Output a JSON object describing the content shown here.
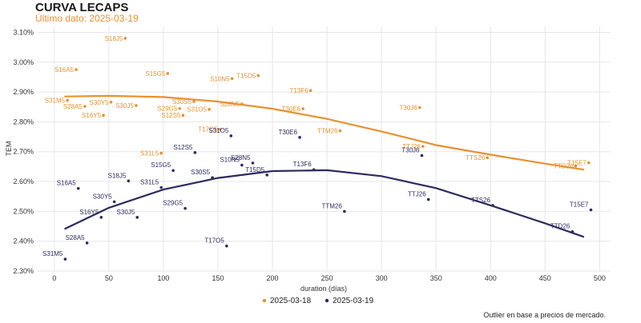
{
  "header": {
    "title": "CURVA LECAPS",
    "subtitle": "Último dato: 2025-03-19"
  },
  "footnote": "Outlier en base a precios de mercado.",
  "colors": {
    "series_a": "#e8912f",
    "series_b": "#2e2a5e",
    "grid": "#e6e6e6"
  },
  "chart_data": {
    "type": "scatter",
    "xlabel": "duration (días)",
    "ylabel": "TEM",
    "xlim": [
      -16,
      510
    ],
    "ylim": [
      2.3,
      3.12
    ],
    "xticks": [
      0,
      50,
      100,
      150,
      200,
      250,
      300,
      350,
      400,
      450,
      500
    ],
    "yticks": [
      2.3,
      2.4,
      2.5,
      2.6,
      2.7,
      2.8,
      2.9,
      3.0,
      3.1
    ],
    "ytick_labels": [
      "2.30%",
      "2.40%",
      "2.50%",
      "2.60%",
      "2.70%",
      "2.80%",
      "2.90%",
      "3.00%",
      "3.10%"
    ],
    "grid": true,
    "legend_position": "bottom",
    "series": [
      {
        "name": "2025-03-18",
        "color": "#e8912f",
        "curve": [
          [
            10,
            2.885
          ],
          [
            50,
            2.887
          ],
          [
            100,
            2.883
          ],
          [
            150,
            2.868
          ],
          [
            200,
            2.844
          ],
          [
            250,
            2.81
          ],
          [
            300,
            2.768
          ],
          [
            350,
            2.722
          ],
          [
            400,
            2.69
          ],
          [
            450,
            2.66
          ],
          [
            485,
            2.64
          ]
        ],
        "points": [
          {
            "label": "S31M5",
            "x": 12,
            "y": 2.872
          },
          {
            "label": "S16A5",
            "x": 20,
            "y": 2.975
          },
          {
            "label": "S28A5",
            "x": 28,
            "y": 2.852
          },
          {
            "label": "S16Y5",
            "x": 45,
            "y": 2.822
          },
          {
            "label": "S30Y5",
            "x": 52,
            "y": 2.866
          },
          {
            "label": "S18J5",
            "x": 65,
            "y": 3.08
          },
          {
            "label": "S30J5",
            "x": 75,
            "y": 2.855
          },
          {
            "label": "S31L5",
            "x": 98,
            "y": 2.695
          },
          {
            "label": "S15G5",
            "x": 104,
            "y": 2.962
          },
          {
            "label": "S29G5",
            "x": 115,
            "y": 2.845
          },
          {
            "label": "S12S5",
            "x": 118,
            "y": 2.822
          },
          {
            "label": "S30S5",
            "x": 128,
            "y": 2.868
          },
          {
            "label": "S31O5",
            "x": 142,
            "y": 2.842
          },
          {
            "label": "T17O5",
            "x": 152,
            "y": 2.775
          },
          {
            "label": "S10N5",
            "x": 163,
            "y": 2.945
          },
          {
            "label": "S28N5",
            "x": 172,
            "y": 2.86
          },
          {
            "label": "T15D5",
            "x": 187,
            "y": 2.955
          },
          {
            "label": "T30E6",
            "x": 228,
            "y": 2.844
          },
          {
            "label": "T13F6",
            "x": 235,
            "y": 2.905
          },
          {
            "label": "TTM26",
            "x": 262,
            "y": 2.77
          },
          {
            "label": "T30J6",
            "x": 335,
            "y": 2.848
          },
          {
            "label": "TTJ26",
            "x": 338,
            "y": 2.718
          },
          {
            "label": "TTS26",
            "x": 397,
            "y": 2.68
          },
          {
            "label": "TTD26",
            "x": 478,
            "y": 2.652
          },
          {
            "label": "T15E7",
            "x": 490,
            "y": 2.663
          }
        ]
      },
      {
        "name": "2025-03-19",
        "color": "#2e2a5e",
        "curve": [
          [
            10,
            2.442
          ],
          [
            50,
            2.512
          ],
          [
            100,
            2.573
          ],
          [
            150,
            2.612
          ],
          [
            200,
            2.635
          ],
          [
            250,
            2.638
          ],
          [
            300,
            2.618
          ],
          [
            350,
            2.578
          ],
          [
            400,
            2.52
          ],
          [
            450,
            2.46
          ],
          [
            485,
            2.415
          ]
        ],
        "points": [
          {
            "label": "S31M5",
            "x": 10,
            "y": 2.34
          },
          {
            "label": "S16A5",
            "x": 22,
            "y": 2.577
          },
          {
            "label": "S28A5",
            "x": 30,
            "y": 2.394
          },
          {
            "label": "S16Y5",
            "x": 43,
            "y": 2.48
          },
          {
            "label": "S30Y5",
            "x": 55,
            "y": 2.532
          },
          {
            "label": "S18J5",
            "x": 68,
            "y": 2.602
          },
          {
            "label": "S30J5",
            "x": 76,
            "y": 2.48
          },
          {
            "label": "S31L5",
            "x": 98,
            "y": 2.58
          },
          {
            "label": "S15G5",
            "x": 109,
            "y": 2.637
          },
          {
            "label": "S29G5",
            "x": 120,
            "y": 2.51
          },
          {
            "label": "S12S5",
            "x": 129,
            "y": 2.697
          },
          {
            "label": "S30S5",
            "x": 145,
            "y": 2.613
          },
          {
            "label": "T17O5",
            "x": 158,
            "y": 2.384
          },
          {
            "label": "S31O5",
            "x": 162,
            "y": 2.753
          },
          {
            "label": "S10N5",
            "x": 172,
            "y": 2.655
          },
          {
            "label": "T15D5",
            "x": 195,
            "y": 2.622
          },
          {
            "label": "S28N5",
            "x": 182,
            "y": 2.662
          },
          {
            "label": "T30E6",
            "x": 225,
            "y": 2.748
          },
          {
            "label": "T13F6",
            "x": 238,
            "y": 2.64
          },
          {
            "label": "TTM26",
            "x": 266,
            "y": 2.5
          },
          {
            "label": "T30J6",
            "x": 337,
            "y": 2.687
          },
          {
            "label": "TTJ26",
            "x": 343,
            "y": 2.54
          },
          {
            "label": "TTS26",
            "x": 402,
            "y": 2.52
          },
          {
            "label": "TTD26",
            "x": 475,
            "y": 2.432
          },
          {
            "label": "T15E7",
            "x": 492,
            "y": 2.505
          }
        ]
      }
    ]
  }
}
